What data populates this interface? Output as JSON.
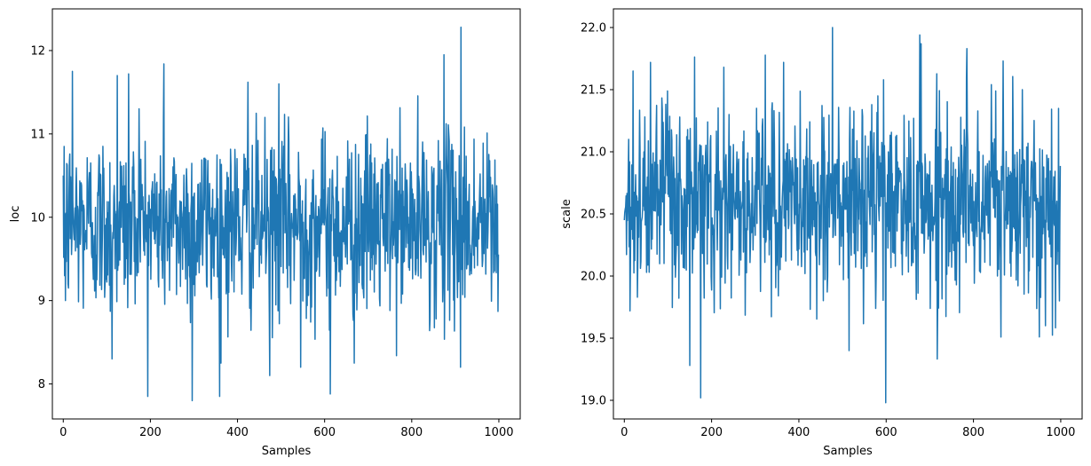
{
  "chart_data": [
    {
      "type": "line",
      "xlabel": "Samples",
      "ylabel": "loc",
      "xlim": [
        -25,
        1049
      ],
      "ylim": [
        7.58,
        12.5
      ],
      "xticks": [
        0,
        200,
        400,
        600,
        800,
        1000
      ],
      "yticks": [
        8,
        9,
        10,
        11,
        12
      ],
      "grid": false,
      "series": [
        {
          "color": "#1f77b4",
          "n": 1000,
          "mean": 9.92,
          "std": 0.55,
          "min": 7.8,
          "max": 12.28,
          "x": [
            0,
            2,
            5,
            21,
            112,
            124,
            150,
            174,
            231,
            296,
            362,
            424,
            474,
            495,
            545,
            613,
            668,
            874,
            912,
            913,
            998
          ],
          "y": [
            10.5,
            10.85,
            9.0,
            11.75,
            8.3,
            11.7,
            11.72,
            11.3,
            11.84,
            7.8,
            8.25,
            11.62,
            8.1,
            11.6,
            8.2,
            7.88,
            8.25,
            11.95,
            8.2,
            12.28,
            8.87
          ]
        }
      ]
    },
    {
      "type": "line",
      "xlabel": "Samples",
      "ylabel": "scale",
      "xlim": [
        -25,
        1049
      ],
      "ylim": [
        18.85,
        22.15
      ],
      "xticks": [
        0,
        200,
        400,
        600,
        800,
        1000
      ],
      "yticks": [
        19.0,
        19.5,
        20.0,
        20.5,
        21.0,
        21.5,
        22.0
      ],
      "grid": false,
      "series": [
        {
          "color": "#1f77b4",
          "n": 1000,
          "mean": 20.6,
          "std": 0.38,
          "min": 18.98,
          "max": 22.0,
          "x": [
            0,
            13,
            20,
            60,
            150,
            175,
            228,
            365,
            477,
            515,
            581,
            599,
            680,
            785,
            868,
            965,
            997
          ],
          "y": [
            20.45,
            19.72,
            21.65,
            21.72,
            19.28,
            19.02,
            21.68,
            21.72,
            22.0,
            19.4,
            21.45,
            18.98,
            21.87,
            21.83,
            21.73,
            19.6,
            19.8
          ]
        }
      ]
    }
  ]
}
